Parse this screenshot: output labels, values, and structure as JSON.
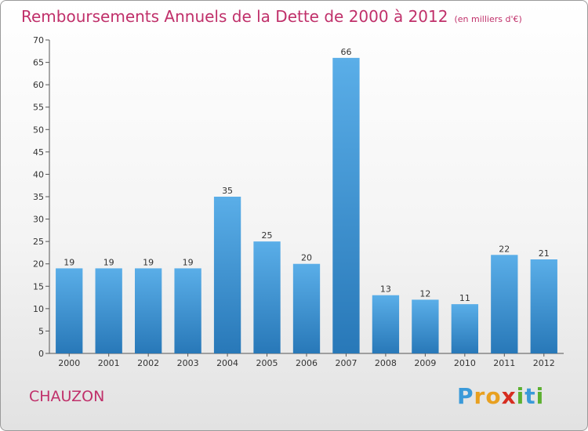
{
  "chart_data": {
    "type": "bar",
    "title": "Remboursements Annuels de la Dette de 2000 à 2012",
    "unit": "(en milliers d'€)",
    "categories": [
      "2000",
      "2001",
      "2002",
      "2003",
      "2004",
      "2005",
      "2006",
      "2007",
      "2008",
      "2009",
      "2010",
      "2011",
      "2012"
    ],
    "values": [
      19,
      19,
      19,
      19,
      35,
      25,
      20,
      66,
      13,
      12,
      11,
      22,
      21
    ],
    "ylim": [
      0,
      70
    ],
    "yticks": [
      0,
      5,
      10,
      15,
      20,
      25,
      30,
      35,
      40,
      45,
      50,
      55,
      60,
      65,
      70
    ],
    "grid": false,
    "bar_color_top": "#5aaee8",
    "bar_color_bottom": "#2878b8",
    "title_color": "#c0306a"
  },
  "footer": {
    "commune": "CHAUZON",
    "logo": {
      "letters": [
        "P",
        "r",
        "o",
        "x",
        "i",
        "t",
        "i"
      ],
      "colors": [
        "#3a9ad9",
        "#e8a020",
        "#e8a020",
        "#d62d20",
        "#5cb030",
        "#3a9ad9",
        "#5cb030"
      ]
    }
  }
}
